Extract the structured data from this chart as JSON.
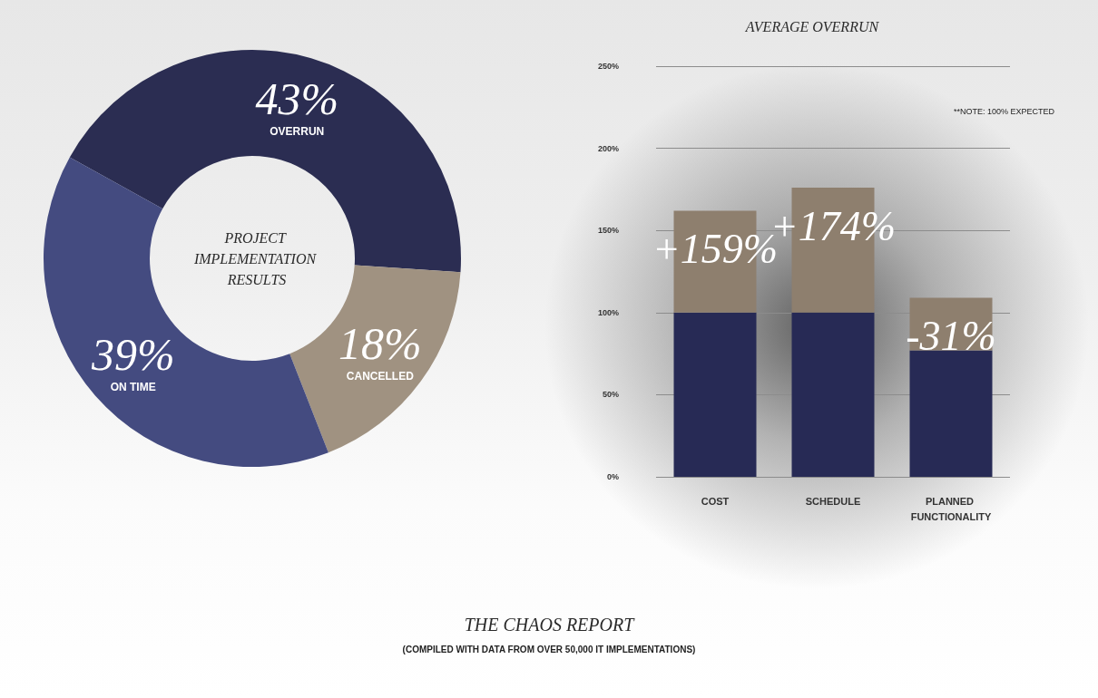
{
  "chart_data": [
    {
      "type": "donut",
      "title": "PROJECT IMPLEMENTATION RESULTS",
      "categories": [
        "OVERRUN",
        "CANCELLED",
        "ON TIME"
      ],
      "values": [
        43,
        18,
        39
      ],
      "value_labels": [
        "43%",
        "18%",
        "39%"
      ],
      "colors": [
        "#2b2d52",
        "#a09281",
        "#444b80"
      ]
    },
    {
      "type": "bar",
      "title": "AVERAGE OVERRUN",
      "categories": [
        "COST",
        "SCHEDULE",
        "PLANNED FUNCTIONALITY"
      ],
      "stacked": true,
      "series": [
        {
          "color": "#272a55",
          "values": [
            100,
            100,
            77
          ]
        },
        {
          "color": "#8e7f6e",
          "values": [
            62,
            76,
            32
          ]
        }
      ],
      "ylim": [
        0,
        250
      ],
      "yticks": [
        {
          "value": 0,
          "label": "0%"
        },
        {
          "value": 50,
          "label": "50%"
        },
        {
          "value": 100,
          "label": "100%"
        },
        {
          "value": 150,
          "label": "150%"
        },
        {
          "value": 200,
          "label": "200%"
        },
        {
          "value": 250,
          "label": "250%"
        }
      ],
      "grid": "y",
      "annotations": [
        "+159%",
        "+174%",
        "-31%",
        "**NOTE: 100% EXPECTED"
      ]
    },
    {
      "type": "other",
      "title": "THE CHAOS REPORT",
      "subtitle": "(COMPILED WITH DATA FROM OVER 50,000 IT IMPLEMENTATIONS)"
    }
  ]
}
